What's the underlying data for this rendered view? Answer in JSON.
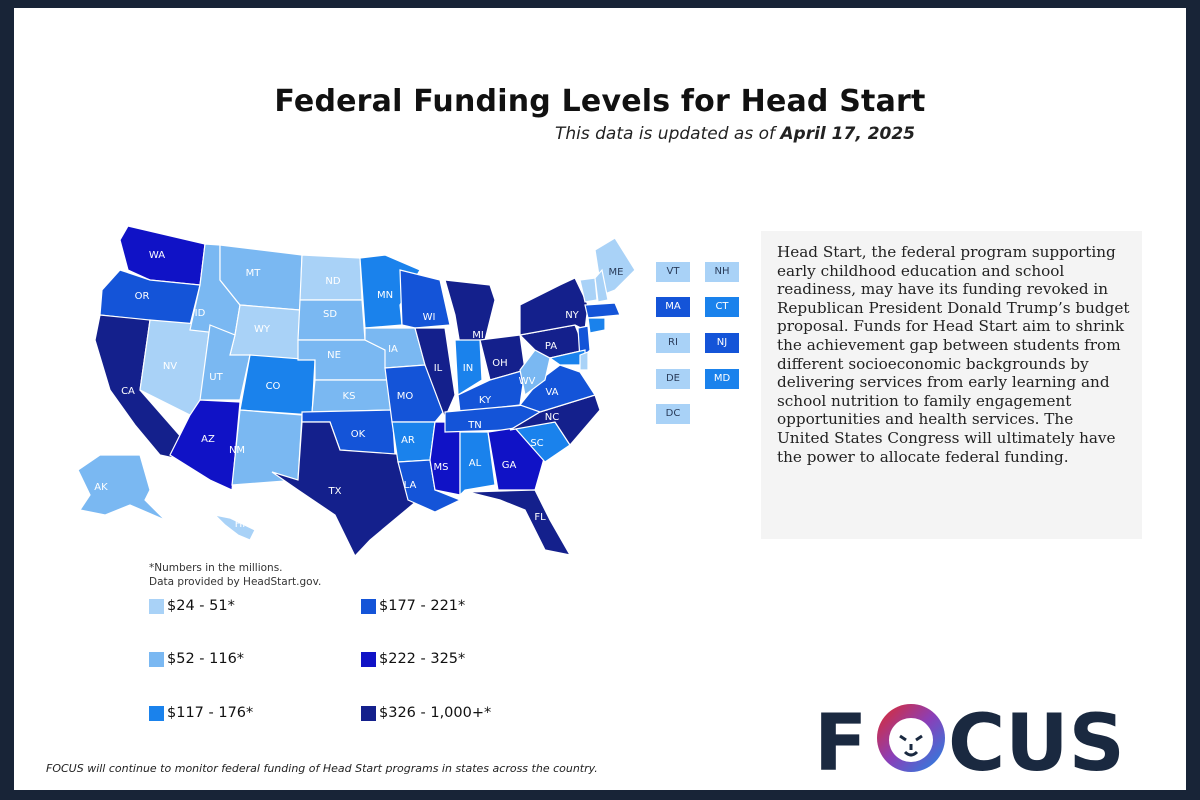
{
  "title": "Federal Funding Levels for Head Start",
  "subtitle_prefix": "This data is updated as of ",
  "subtitle_date": "April 17, 2025",
  "colors": {
    "c1": "#a9d2f7",
    "c2": "#7ab8f2",
    "c3": "#1a82ec",
    "c4": "#1454d8",
    "c5": "#1012c6",
    "c6": "#14208c"
  },
  "states": {
    "WA": "c5",
    "OR": "c4",
    "CA": "c6",
    "NV": "c1",
    "ID": "c2",
    "MT": "c2",
    "WY": "c1",
    "UT": "c2",
    "AZ": "c5",
    "NM": "c2",
    "CO": "c3",
    "ND": "c1",
    "SD": "c2",
    "NE": "c2",
    "KS": "c2",
    "OK": "c4",
    "TX": "c6",
    "MN": "c3",
    "IA": "c2",
    "MO": "c4",
    "AR": "c3",
    "LA": "c4",
    "WI": "c4",
    "IL": "c6",
    "MS": "c5",
    "MI": "c6",
    "IN": "c3",
    "KY": "c4",
    "TN": "c4",
    "AL": "c3",
    "OH": "c6",
    "GA": "c5",
    "FL": "c6",
    "SC": "c3",
    "NC": "c6",
    "VA": "c4",
    "WV": "c2",
    "PA": "c6",
    "NY": "c6",
    "ME": "c1",
    "AK": "c2",
    "HI": "c1",
    "VT": "c1",
    "NH": "c1",
    "MA": "c4",
    "CT": "c3",
    "RI": "c1",
    "NJ": "c4",
    "DE": "c1",
    "MD": "c3",
    "DC": "c1"
  },
  "info_text": "Head Start, the federal program supporting early childhood education and school readiness, may have its funding revoked in Republican President Donald Trump’s budget proposal. Funds for Head Start aim to shrink the achievement gap between students from different socioeconomic backgrounds by delivering services from early learning and school nutrition to family engagement opportunities and health services. The United States Congress will ultimately have the power to allocate federal funding.",
  "footnote_1": "*Numbers in the millions.",
  "footnote_2": "Data provided by HeadStart.gov.",
  "legend": [
    {
      "label": "$24 - 51*",
      "color": "#a9d2f7"
    },
    {
      "label": "$52 - 116*",
      "color": "#7ab8f2"
    },
    {
      "label": "$117 - 176*",
      "color": "#1a82ec"
    },
    {
      "label": "$177 - 221*",
      "color": "#1454d8"
    },
    {
      "label": "$222 - 325*",
      "color": "#1012c6"
    },
    {
      "label": "$326 - 1,000+*",
      "color": "#14208c"
    }
  ],
  "bottom_note": "FOCUS will continue to monitor federal funding of Head Start programs in states across the country.",
  "logo_text": "FOCUS"
}
